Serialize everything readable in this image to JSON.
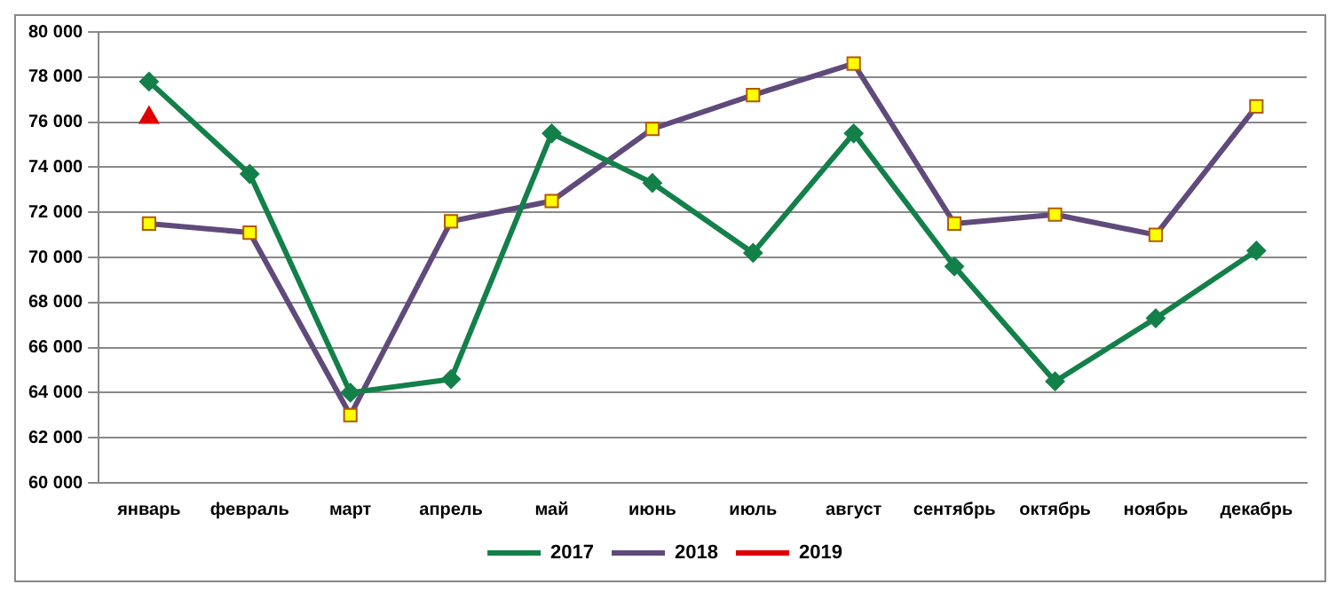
{
  "chart_data": {
    "type": "line",
    "categories": [
      "январь",
      "февраль",
      "март",
      "апрель",
      "май",
      "июнь",
      "июль",
      "август",
      "сентябрь",
      "октябрь",
      "ноябрь",
      "декабрь"
    ],
    "series": [
      {
        "name": "2017",
        "color": "#138049",
        "marker": "diamond",
        "values": [
          77800,
          73700,
          64000,
          64600,
          75500,
          73300,
          70200,
          75500,
          69600,
          64500,
          67300,
          70300
        ]
      },
      {
        "name": "2018",
        "color": "#604a7b",
        "marker": "square",
        "values": [
          71500,
          71100,
          63000,
          71600,
          72500,
          75700,
          77200,
          78600,
          71500,
          71900,
          71000,
          76700
        ]
      },
      {
        "name": "2019",
        "color": "#e00000",
        "marker": "triangle",
        "values": [
          76200,
          null,
          null,
          null,
          null,
          null,
          null,
          null,
          null,
          null,
          null,
          null
        ]
      }
    ],
    "ylim": [
      60000,
      80000
    ],
    "yticks": [
      {
        "value": 60000,
        "label": "60 000"
      },
      {
        "value": 62000,
        "label": "62 000"
      },
      {
        "value": 64000,
        "label": "64 000"
      },
      {
        "value": 66000,
        "label": "66 000"
      },
      {
        "value": 68000,
        "label": "68 000"
      },
      {
        "value": 70000,
        "label": "70 000"
      },
      {
        "value": 72000,
        "label": "72 000"
      },
      {
        "value": 74000,
        "label": "74 000"
      },
      {
        "value": 76000,
        "label": "76 000"
      },
      {
        "value": 78000,
        "label": "78 000"
      },
      {
        "value": 80000,
        "label": "80 000"
      }
    ],
    "grid": "y",
    "legend": "bottom"
  }
}
